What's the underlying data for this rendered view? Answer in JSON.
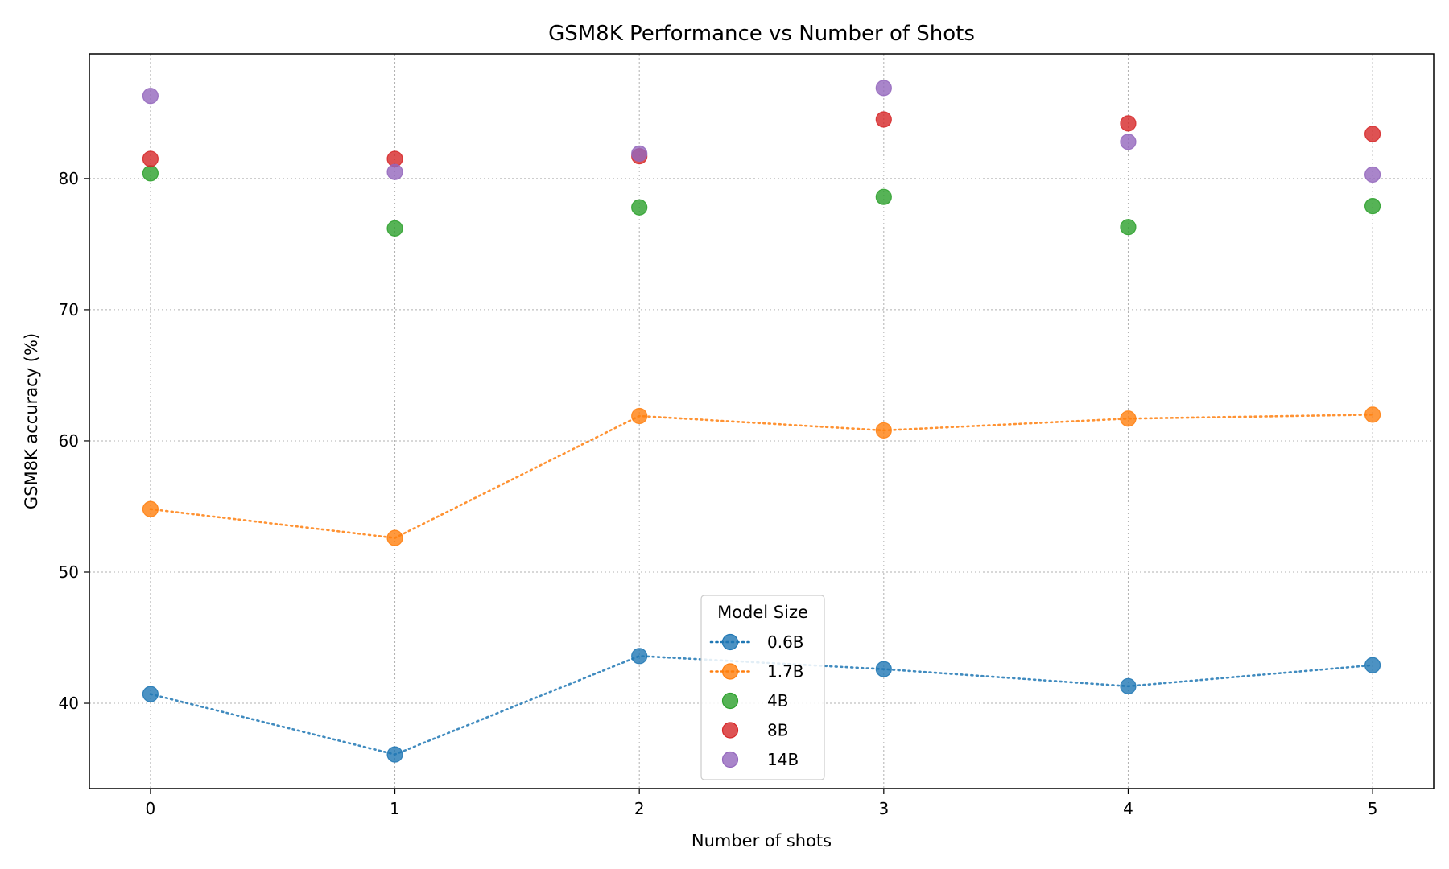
{
  "chart_data": {
    "type": "line",
    "title": "GSM8K Performance vs Number of Shots",
    "xlabel": "Number of shots",
    "ylabel": "GSM8K accuracy (%)",
    "x": [
      0,
      1,
      2,
      3,
      4,
      5
    ],
    "x_ticks": [
      "0",
      "1",
      "2",
      "3",
      "4",
      "5"
    ],
    "y_ticks": [
      "40",
      "50",
      "60",
      "70",
      "80"
    ],
    "xlim": [
      -0.25,
      5.25
    ],
    "ylim": [
      33.5,
      89.5
    ],
    "grid": true,
    "legend": {
      "title": "Model Size",
      "placement": "lower center"
    },
    "series": [
      {
        "name": "0.6B",
        "color": "#1f77b4",
        "connected": true,
        "values": [
          40.7,
          36.1,
          43.6,
          42.6,
          41.3,
          42.9
        ]
      },
      {
        "name": "1.7B",
        "color": "#ff7f0e",
        "connected": true,
        "values": [
          54.8,
          52.6,
          61.9,
          60.8,
          61.7,
          62.0
        ]
      },
      {
        "name": "4B",
        "color": "#2ca02c",
        "connected": false,
        "values": [
          80.4,
          76.2,
          77.8,
          78.6,
          76.3,
          77.9
        ]
      },
      {
        "name": "8B",
        "color": "#d62728",
        "connected": false,
        "values": [
          81.5,
          81.5,
          81.7,
          84.5,
          84.2,
          83.4
        ]
      },
      {
        "name": "14B",
        "color": "#9467bd",
        "connected": false,
        "values": [
          86.3,
          80.5,
          81.9,
          86.9,
          82.8,
          80.3
        ]
      }
    ]
  }
}
